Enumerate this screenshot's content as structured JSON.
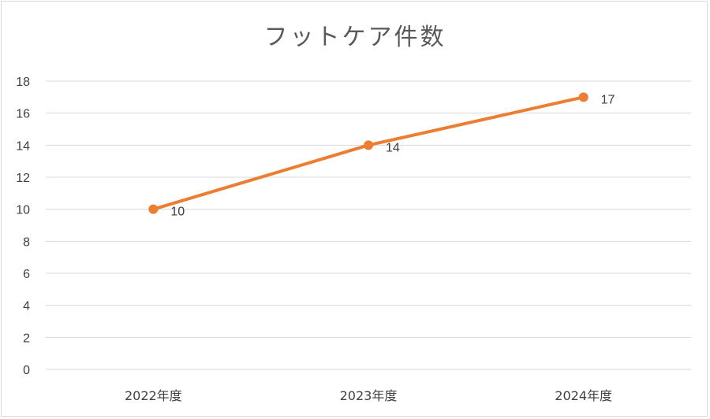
{
  "chart_data": {
    "type": "line",
    "title": "フットケア件数",
    "categories": [
      "2022年度",
      "2023年度",
      "2024年度"
    ],
    "series": [
      {
        "values": [
          10,
          14,
          17
        ],
        "color": "#ed7d31"
      }
    ],
    "data_labels": [
      "10",
      "14",
      "17"
    ],
    "ylim": [
      0,
      18
    ],
    "yticks": [
      "0",
      "2",
      "4",
      "6",
      "8",
      "10",
      "12",
      "14",
      "16",
      "18"
    ],
    "xlabel": "",
    "ylabel": "",
    "grid": true,
    "legend": "none",
    "gridline_color": "#d9d9d9"
  }
}
